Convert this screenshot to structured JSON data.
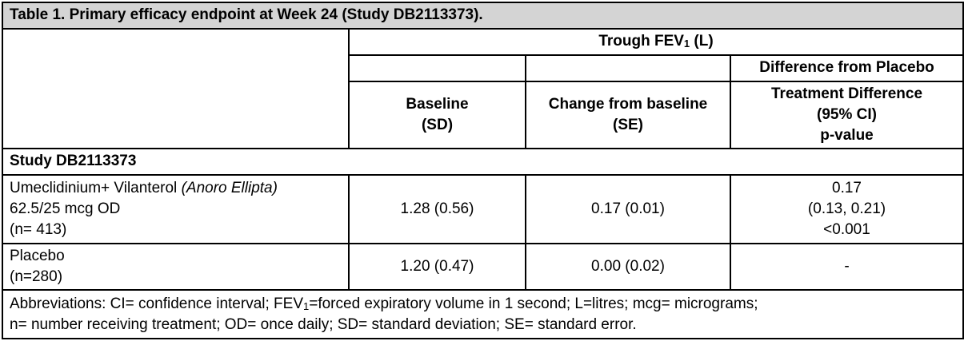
{
  "title": "Table 1. Primary efficacy endpoint at Week 24 (Study DB2113373).",
  "header": {
    "trough_fev_prefix": "Trough FEV",
    "trough_fev_sub": "1",
    "trough_fev_suffix": " (L)",
    "difference_from_placebo": "Difference from Placebo",
    "baseline_line1": "Baseline",
    "baseline_line2": "(SD)",
    "change_line1": "Change from baseline",
    "change_line2": "(SE)",
    "treatment_line1": "Treatment Difference",
    "treatment_line2": "(95% CI)",
    "treatment_line3": "p-value"
  },
  "study_label": "Study DB2113373",
  "rows": [
    {
      "name_prefix": "Umeclidinium+ Vilanterol ",
      "name_italic": "(Anoro Ellipta)",
      "dose": "62.5/25 mcg OD",
      "n": "(n= 413)",
      "baseline": "1.28 (0.56)",
      "change": "0.17 (0.01)",
      "diff_value": "0.17",
      "diff_ci": "(0.13, 0.21)",
      "diff_p": "<0.001"
    },
    {
      "name": "Placebo",
      "n": "(n=280)",
      "baseline": "1.20 (0.47)",
      "change": "0.00 (0.02)",
      "diff_value": "-"
    }
  ],
  "abbreviations": {
    "part1": "Abbreviations: CI= confidence interval; FEV",
    "sub": "1",
    "part2": "=forced expiratory volume in 1 second; L=litres; mcg= micrograms;",
    "line2": "n= number receiving treatment; OD= once daily; SD= standard deviation; SE= standard error."
  }
}
